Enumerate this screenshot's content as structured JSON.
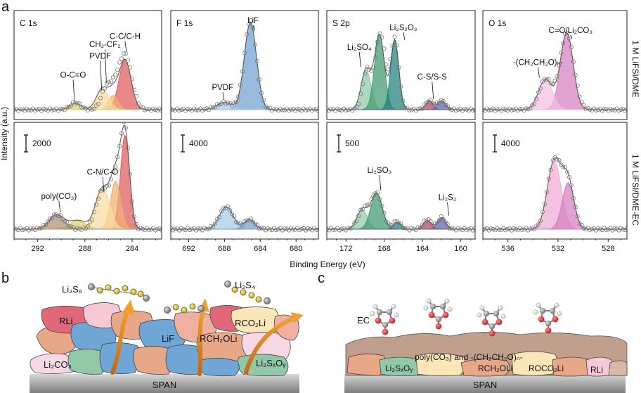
{
  "figure": {
    "panel_a": "a",
    "panel_b": "b",
    "panel_c": "c",
    "ylabel": "Intensity (a.u.)",
    "xlabel": "Binding Energy (eV)",
    "row_labels": [
      "1 M LiFSI/DME",
      "1 M LiFSI/DME-EC"
    ]
  },
  "chart_data": [
    {
      "type": "line",
      "title": "C 1s",
      "xlim": [
        294,
        281.5
      ],
      "ticks": [
        292,
        288,
        284
      ],
      "scale_bar": "2000",
      "top": {
        "raw_peaks": [
          [
            284.6,
            1.3,
            0.62
          ],
          [
            286.2,
            1.0,
            0.24
          ],
          [
            285.5,
            0.9,
            0.15
          ],
          [
            288.8,
            1.0,
            0.08
          ]
        ],
        "components": [
          {
            "c": 284.6,
            "w": 1.2,
            "h": 0.56,
            "color": "#e05a5a"
          },
          {
            "c": 285.6,
            "w": 0.9,
            "h": 0.16,
            "color": "#f0b070"
          },
          {
            "c": 286.5,
            "w": 1.2,
            "h": 0.24,
            "color": "#f8dca0"
          },
          {
            "c": 288.8,
            "w": 1.2,
            "h": 0.07,
            "color": "#d8d070"
          }
        ],
        "annotations": [
          {
            "text": "C-C/C-H",
            "x": 284.6,
            "ty": 0.79,
            "ly": 0.65
          },
          {
            "text": "CH₂-CF₂",
            "x": 286.3,
            "ty": 0.7,
            "ly": 0.3
          },
          {
            "text": "PVDF",
            "x": 286.7,
            "ty": 0.57,
            "ly": 0.22
          },
          {
            "text": "O-C=O",
            "x": 289.0,
            "ty": 0.36,
            "ly": 0.1
          }
        ]
      },
      "bottom": {
        "raw_peaks": [
          [
            284.6,
            0.9,
            1.0
          ],
          [
            285.4,
            1.0,
            0.5
          ],
          [
            286.5,
            1.3,
            0.4
          ],
          [
            290.4,
            1.5,
            0.15
          ]
        ],
        "components": [
          {
            "c": 284.6,
            "w": 0.9,
            "h": 0.97,
            "color": "#e05a5a"
          },
          {
            "c": 285.4,
            "w": 1.0,
            "h": 0.5,
            "color": "#f0b070"
          },
          {
            "c": 286.5,
            "w": 1.4,
            "h": 0.42,
            "color": "#f8dca0"
          },
          {
            "c": 288.6,
            "w": 1.6,
            "h": 0.09,
            "color": "#d8d070"
          },
          {
            "c": 290.4,
            "w": 1.5,
            "h": 0.15,
            "color": "#b09070"
          }
        ],
        "annotations": [
          {
            "text": "C-N/C-O",
            "x": 286.5,
            "ty": 0.56,
            "ly": 0.38
          },
          {
            "text": "poly(CO₃)",
            "x": 290.2,
            "ty": 0.31,
            "ly": 0.17
          }
        ]
      }
    },
    {
      "type": "line",
      "title": "F 1s",
      "xlim": [
        694,
        677.5
      ],
      "ticks": [
        692,
        688,
        684,
        680
      ],
      "scale_bar": "4000",
      "top": {
        "raw_peaks": [
          [
            685.1,
            1.6,
            1.0
          ],
          [
            688.0,
            2.0,
            0.08
          ]
        ],
        "components": [
          {
            "c": 685.1,
            "w": 1.6,
            "h": 0.98,
            "color": "#6f9fd0"
          },
          {
            "c": 688.0,
            "w": 2.0,
            "h": 0.08,
            "color": "#a6c6e6"
          }
        ],
        "annotations": [
          {
            "text": "LiF",
            "x": 684.8,
            "ty": 0.97,
            "ly": 0.88
          },
          {
            "text": "PVDF",
            "x": 688.2,
            "ty": 0.22,
            "ly": 0.11
          }
        ]
      },
      "bottom": {
        "raw_peaks": [
          [
            687.8,
            1.8,
            0.23
          ],
          [
            685.2,
            1.4,
            0.1
          ]
        ],
        "components": [
          {
            "c": 687.8,
            "w": 1.8,
            "h": 0.23,
            "color": "#a6cce8"
          },
          {
            "c": 685.2,
            "w": 1.4,
            "h": 0.1,
            "color": "#6f9fd0"
          }
        ],
        "annotations": []
      }
    },
    {
      "type": "line",
      "title": "S 2p",
      "xlim": [
        174,
        158.5
      ],
      "ticks": [
        172,
        168,
        164,
        160
      ],
      "scale_bar": "500",
      "top": {
        "raw_peaks": [
          [
            168.4,
            1.2,
            0.85
          ],
          [
            166.9,
            1.0,
            0.8
          ],
          [
            169.8,
            1.1,
            0.45
          ],
          [
            163.3,
            1.0,
            0.1
          ],
          [
            162.0,
            1.0,
            0.1
          ]
        ],
        "components": [
          {
            "c": 169.9,
            "w": 1.2,
            "h": 0.45,
            "color": "#8fcaa5"
          },
          {
            "c": 168.5,
            "w": 1.2,
            "h": 0.84,
            "color": "#3f9a6e"
          },
          {
            "c": 166.9,
            "w": 1.0,
            "h": 0.78,
            "color": "#1f7f7a"
          },
          {
            "c": 163.3,
            "w": 0.9,
            "h": 0.1,
            "color": "#b54066"
          },
          {
            "c": 162.0,
            "w": 1.0,
            "h": 0.1,
            "color": "#6060b0"
          }
        ],
        "annotations": [
          {
            "text": "Li₂S₂O₃",
            "x": 166.0,
            "ty": 0.89,
            "ly": 0.78
          },
          {
            "text": "Li₂SO₄",
            "x": 170.6,
            "ty": 0.67,
            "ly": 0.48
          },
          {
            "text": "C-S/S-S",
            "x": 163.0,
            "ty": 0.34,
            "ly": 0.12
          }
        ]
      },
      "bottom": {
        "raw_peaks": [
          [
            168.8,
            1.4,
            0.37
          ],
          [
            170.2,
            1.3,
            0.2
          ],
          [
            166.7,
            1.0,
            0.08
          ],
          [
            163.5,
            1.0,
            0.1
          ],
          [
            162.0,
            1.0,
            0.12
          ]
        ],
        "components": [
          {
            "c": 170.3,
            "w": 1.3,
            "h": 0.2,
            "color": "#8fcaa5"
          },
          {
            "c": 168.8,
            "w": 1.4,
            "h": 0.37,
            "color": "#3f9a6e"
          },
          {
            "c": 166.6,
            "w": 1.0,
            "h": 0.07,
            "color": "#1f7f7a"
          },
          {
            "c": 163.5,
            "w": 1.0,
            "h": 0.09,
            "color": "#b54066"
          },
          {
            "c": 162.0,
            "w": 1.0,
            "h": 0.12,
            "color": "#6060b0"
          }
        ],
        "annotations": [
          {
            "text": "Li₂SO₃",
            "x": 168.5,
            "ty": 0.58,
            "ly": 0.4
          },
          {
            "text": "Li₂S₂",
            "x": 161.4,
            "ty": 0.3,
            "ly": 0.14
          }
        ]
      }
    },
    {
      "type": "line",
      "title": "O 1s",
      "xlim": [
        538,
        526.5
      ],
      "ticks": [
        536,
        532,
        528
      ],
      "scale_bar": "4000",
      "top": {
        "raw_peaks": [
          [
            531.3,
            1.3,
            0.86
          ],
          [
            533.0,
            1.2,
            0.34
          ]
        ],
        "components": [
          {
            "c": 531.3,
            "w": 1.2,
            "h": 0.86,
            "color": "#d77fc0"
          },
          {
            "c": 533.0,
            "w": 1.3,
            "h": 0.34,
            "color": "#f2bfe0"
          }
        ],
        "annotations": [
          {
            "text": "C=O/Li₂CO₃",
            "x": 531.0,
            "ty": 0.86,
            "ly": 0.8
          },
          {
            "text": "-(CH₂CH₂O)ₙ-",
            "x": 533.6,
            "ty": 0.5,
            "ly": 0.36
          }
        ]
      },
      "bottom": {
        "raw_peaks": [
          [
            532.3,
            1.3,
            0.7
          ],
          [
            531.2,
            1.1,
            0.48
          ]
        ],
        "components": [
          {
            "c": 532.3,
            "w": 1.3,
            "h": 0.7,
            "color": "#f0acd6"
          },
          {
            "c": 531.2,
            "w": 1.1,
            "h": 0.48,
            "color": "#d77fc0"
          }
        ],
        "annotations": []
      }
    }
  ],
  "schematic_b": {
    "labels": {
      "li2s6": "Li₂S₆",
      "li2s4": "Li₂S₄",
      "rli": "RLi",
      "lif": "LiF",
      "rco2li": "RCO₂Li",
      "rch2oli": "RCH₂OLi",
      "li2co3": "Li₂CO₃",
      "li2sxoy": "Li₂SₓOᵧ",
      "span": "SPAN"
    }
  },
  "schematic_c": {
    "labels": {
      "ec": "EC",
      "poly": "poly(CO₃) and -(CH₂CH₂O)ₙ-",
      "li2sxoy": "Li₂SₓOᵧ",
      "rch2oli": "RCH₂OLi",
      "roco2li": "ROCO₂Li",
      "rli": "RLi",
      "span": "SPAN"
    }
  }
}
